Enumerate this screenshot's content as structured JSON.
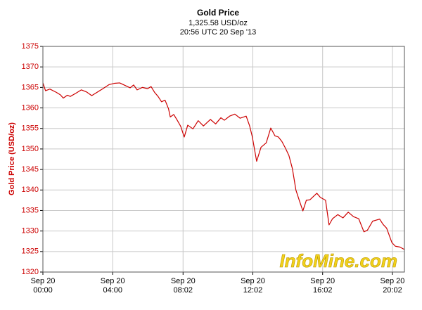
{
  "chart_data": {
    "type": "line",
    "title": "Gold Price",
    "subtitle": "1,325.58 USD/oz",
    "timestamp": "20:56 UTC 20 Sep '13",
    "y_label": "Gold Price (USD/oz)",
    "watermark": "InfoMine.com",
    "grid": true,
    "xlim": [
      0,
      20.72
    ],
    "xticks": [
      {
        "value": 0,
        "label": "Sep 20\n00:00"
      },
      {
        "value": 4,
        "label": "Sep 20\n04:00"
      },
      {
        "value": 8.033,
        "label": "Sep 20\n08:02"
      },
      {
        "value": 12.033,
        "label": "Sep 20\n12:02"
      },
      {
        "value": 16.033,
        "label": "Sep 20\n16:02"
      },
      {
        "value": 20.033,
        "label": "Sep 20\n20:02"
      }
    ],
    "ylim": [
      1320,
      1375
    ],
    "yticks": [
      1320,
      1325,
      1330,
      1335,
      1340,
      1345,
      1350,
      1355,
      1360,
      1365,
      1370,
      1375
    ],
    "x": [
      0,
      0.15,
      0.4,
      0.77,
      1.0,
      1.17,
      1.4,
      1.57,
      1.9,
      2.2,
      2.5,
      2.8,
      3.1,
      3.4,
      3.8,
      4.1,
      4.4,
      4.7,
      5.0,
      5.2,
      5.4,
      5.7,
      6.0,
      6.2,
      6.4,
      6.6,
      6.8,
      7.0,
      7.2,
      7.3,
      7.5,
      7.7,
      7.9,
      8.1,
      8.3,
      8.6,
      8.9,
      9.2,
      9.6,
      9.9,
      10.2,
      10.4,
      10.7,
      11.0,
      11.3,
      11.65,
      11.85,
      12.0,
      12.25,
      12.5,
      12.8,
      13.06,
      13.3,
      13.5,
      13.7,
      13.9,
      14.1,
      14.3,
      14.5,
      14.7,
      14.9,
      15.1,
      15.3,
      15.5,
      15.7,
      15.9,
      16.2,
      16.4,
      16.6,
      16.9,
      17.2,
      17.5,
      17.8,
      18.1,
      18.4,
      18.6,
      18.9,
      19.3,
      19.5,
      19.7,
      20.0,
      20.2,
      20.45,
      20.72
    ],
    "series": [
      {
        "color": "#cc0000",
        "values": [
          1366.1,
          1364.2,
          1364.6,
          1363.8,
          1363.2,
          1362.4,
          1363.1,
          1362.8,
          1363.6,
          1364.4,
          1363.9,
          1363.0,
          1363.8,
          1364.6,
          1365.7,
          1366.0,
          1366.1,
          1365.5,
          1364.9,
          1365.6,
          1364.4,
          1365.0,
          1364.7,
          1365.2,
          1363.8,
          1362.8,
          1361.5,
          1361.9,
          1359.8,
          1357.8,
          1358.4,
          1357.0,
          1355.5,
          1352.9,
          1355.8,
          1354.9,
          1356.9,
          1355.6,
          1357.2,
          1356.1,
          1357.6,
          1357.0,
          1358.0,
          1358.5,
          1357.5,
          1358.0,
          1355.6,
          1353.0,
          1347.0,
          1350.4,
          1351.5,
          1355.1,
          1353.2,
          1352.9,
          1351.8,
          1350.2,
          1348.4,
          1345.2,
          1340.0,
          1337.4,
          1334.9,
          1337.5,
          1337.6,
          1338.4,
          1339.2,
          1338.2,
          1337.5,
          1331.5,
          1333.0,
          1334.0,
          1333.2,
          1334.6,
          1333.5,
          1333.0,
          1329.8,
          1330.2,
          1332.4,
          1332.9,
          1331.6,
          1330.7,
          1327.2,
          1326.3,
          1326.1,
          1325.5
        ]
      }
    ]
  }
}
